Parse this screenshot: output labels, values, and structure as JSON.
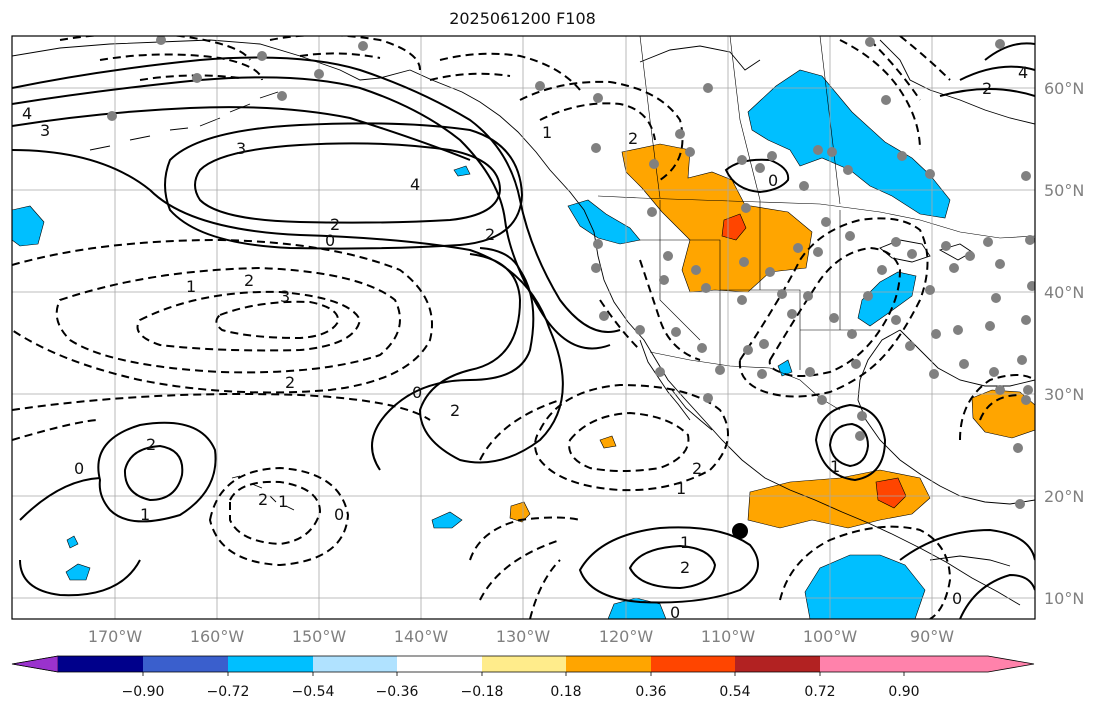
{
  "title": "2025061200 F108",
  "map": {
    "lon_range": [
      -180,
      -80
    ],
    "lat_range": [
      8,
      65
    ],
    "lon_ticks": [
      "170°W",
      "160°W",
      "150°W",
      "140°W",
      "130°W",
      "120°W",
      "110°W",
      "100°W",
      "90°W"
    ],
    "lat_ticks": [
      "60°N",
      "50°N",
      "40°N",
      "30°N",
      "20°N",
      "10°N"
    ],
    "grid": true,
    "contour_labels": [
      "4",
      "3",
      "3",
      "4",
      "2",
      "0",
      "2",
      "1",
      "2",
      "3",
      "2",
      "0",
      "2",
      "2",
      "1",
      "0",
      "2",
      "1",
      "0",
      "1",
      "2",
      "0",
      "1",
      "2",
      "1",
      "2",
      "0",
      "1",
      "4",
      "2",
      "0"
    ]
  },
  "colorbar": {
    "ticks": [
      "−0.90",
      "−0.72",
      "−0.54",
      "−0.36",
      "−0.18",
      "0.18",
      "0.36",
      "0.54",
      "0.72",
      "0.90"
    ],
    "colors": [
      "#9a32cd",
      "#00008b",
      "#3a5fcd",
      "#00bfff",
      "#b0e2ff",
      "#ffffff",
      "#ffec8b",
      "#ffa500",
      "#ff4500",
      "#b22222",
      "#ff82ab"
    ]
  },
  "colors": {
    "negative_fill": "#00bfff",
    "positive_fill": "#ffa500",
    "strong_positive": "#ff4500",
    "stations": "#808080"
  }
}
